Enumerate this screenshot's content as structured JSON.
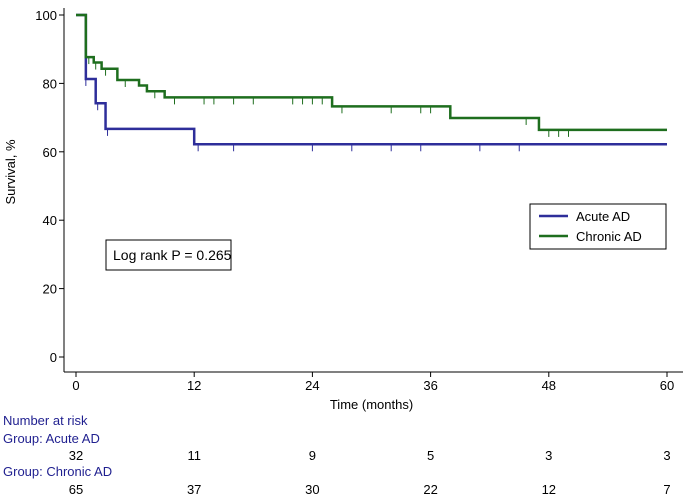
{
  "chart_data": {
    "type": "line",
    "subtype": "kaplan-meier",
    "title": "",
    "xlabel": "Time (months)",
    "ylabel": "Survival, %",
    "xlim": [
      0,
      60
    ],
    "ylim": [
      0,
      100
    ],
    "x_ticks": [
      0,
      12,
      24,
      36,
      48,
      60
    ],
    "y_ticks": [
      0,
      20,
      40,
      60,
      80,
      100
    ],
    "grid": false,
    "legend_position": "right",
    "annotation": "Log rank P = 0.265",
    "series": [
      {
        "name": "Acute AD",
        "color": "#2e2e9a",
        "steps": [
          [
            0,
            100
          ],
          [
            1,
            81.3
          ],
          [
            2,
            74.2
          ],
          [
            3,
            66.7
          ],
          [
            12,
            62.2
          ],
          [
            60,
            62.2
          ]
        ],
        "censored": [
          1,
          2.2,
          3.2,
          12.4,
          16,
          24,
          28,
          32,
          35,
          41,
          45
        ]
      },
      {
        "name": "Chronic AD",
        "color": "#1e6e1e",
        "steps": [
          [
            0,
            100
          ],
          [
            1,
            87.7
          ],
          [
            1.8,
            86.1
          ],
          [
            2.6,
            84.3
          ],
          [
            4.2,
            81.0
          ],
          [
            6.4,
            79.4
          ],
          [
            7.2,
            77.7
          ],
          [
            9,
            75.9
          ],
          [
            26,
            73.3
          ],
          [
            38,
            69.9
          ],
          [
            47,
            66.4
          ],
          [
            60,
            66.4
          ]
        ],
        "censored": [
          1.3,
          2,
          3,
          5,
          8,
          10,
          13,
          14,
          16,
          18,
          22,
          23,
          24,
          25,
          27,
          32,
          35,
          36,
          45.7,
          48,
          49,
          50
        ]
      }
    ]
  },
  "risk_table": {
    "header": "Number at risk",
    "groups": [
      {
        "label": "Group: Acute AD",
        "counts": [
          "32",
          "11",
          "9",
          "5",
          "3",
          "3"
        ]
      },
      {
        "label": "Group: Chronic AD",
        "counts": [
          "65",
          "37",
          "30",
          "22",
          "12",
          "7"
        ]
      }
    ]
  }
}
